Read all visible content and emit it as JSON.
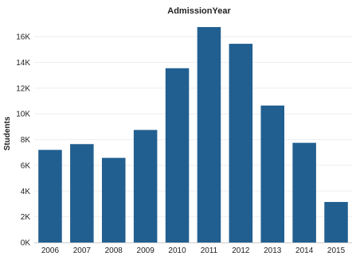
{
  "chart_data": {
    "type": "bar",
    "title": "AdmissionYear",
    "xlabel": "",
    "ylabel": "Students",
    "categories": [
      "2006",
      "2007",
      "2008",
      "2009",
      "2010",
      "2011",
      "2012",
      "2013",
      "2014",
      "2015"
    ],
    "values": [
      7200,
      7650,
      6580,
      8750,
      13550,
      16750,
      15450,
      10650,
      7750,
      3150
    ],
    "ylim": [
      0,
      17000
    ],
    "yticks": [
      0,
      2000,
      4000,
      6000,
      8000,
      10000,
      12000,
      14000,
      16000
    ],
    "ytick_labels": [
      "0K",
      "2K",
      "4K",
      "6K",
      "8K",
      "10K",
      "12K",
      "14K",
      "16K"
    ],
    "grid": true,
    "legend": "none",
    "bar_color": "#215f90"
  }
}
